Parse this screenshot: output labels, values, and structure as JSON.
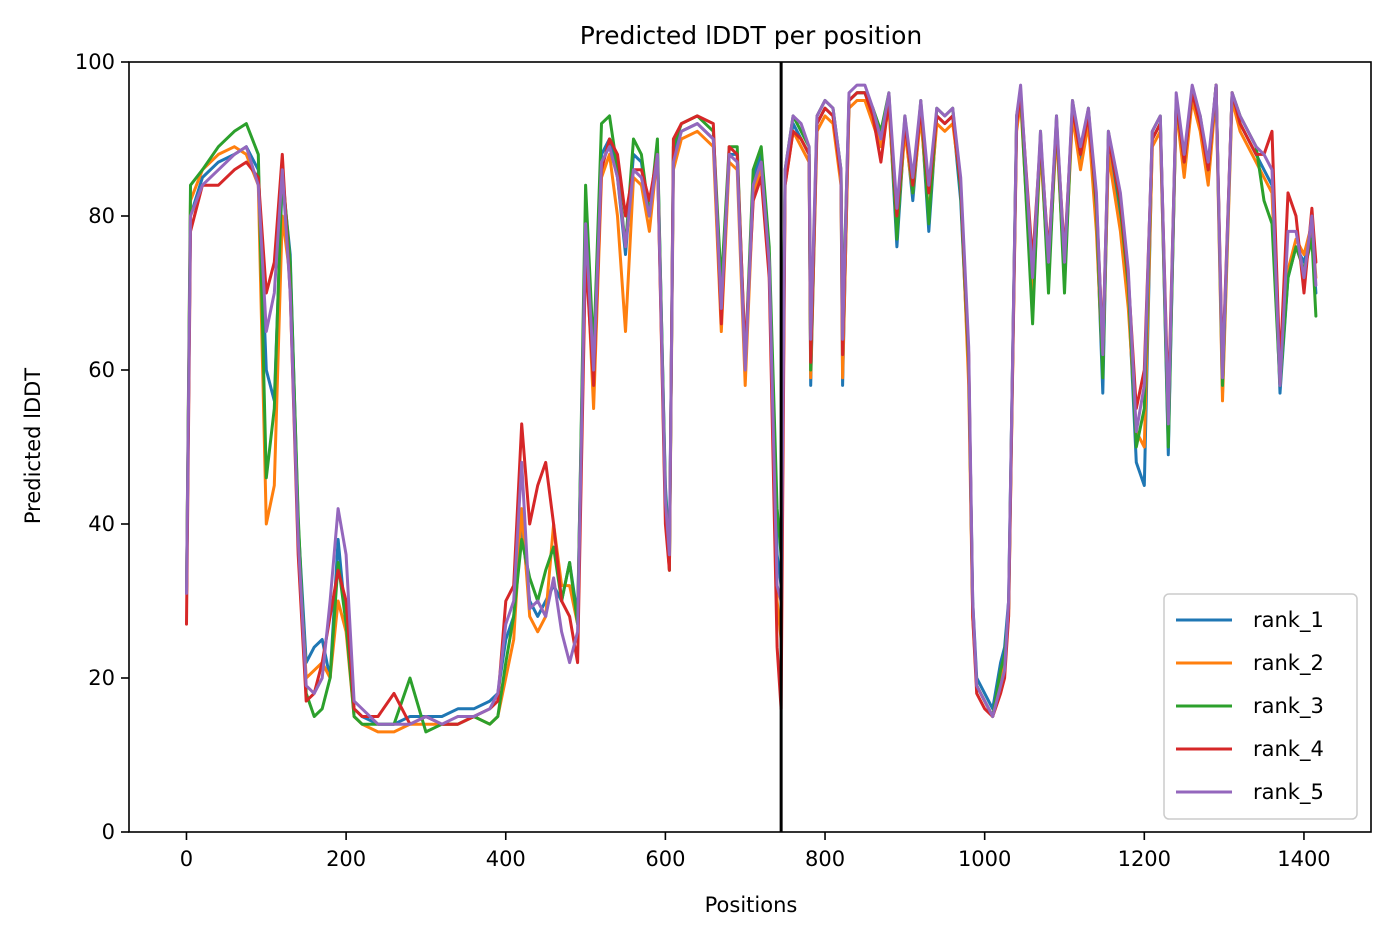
{
  "chart_data": {
    "type": "line",
    "title": "Predicted lDDT per position",
    "xlabel": "Positions",
    "ylabel": "Predicted lDDT",
    "xlim": [
      -72,
      1484
    ],
    "ylim": [
      0,
      100
    ],
    "xticks": [
      0,
      200,
      400,
      600,
      800,
      1000,
      1200,
      1400
    ],
    "yticks": [
      0,
      20,
      40,
      60,
      80,
      100
    ],
    "vline_x": 745,
    "legend_position": "lower-right",
    "grid": false,
    "x": [
      0,
      5,
      20,
      40,
      60,
      75,
      90,
      100,
      110,
      120,
      130,
      140,
      150,
      160,
      170,
      180,
      190,
      200,
      210,
      220,
      240,
      260,
      280,
      300,
      320,
      340,
      360,
      380,
      390,
      400,
      410,
      420,
      430,
      440,
      450,
      460,
      470,
      480,
      490,
      500,
      510,
      520,
      530,
      540,
      550,
      560,
      570,
      580,
      590,
      600,
      605,
      610,
      620,
      640,
      660,
      670,
      680,
      690,
      700,
      710,
      720,
      730,
      740,
      745,
      750,
      760,
      770,
      780,
      782,
      790,
      800,
      810,
      820,
      822,
      830,
      840,
      850,
      860,
      870,
      880,
      890,
      900,
      910,
      920,
      930,
      940,
      950,
      960,
      970,
      980,
      985,
      990,
      1000,
      1010,
      1020,
      1025,
      1030,
      1040,
      1045,
      1060,
      1070,
      1080,
      1090,
      1100,
      1110,
      1120,
      1130,
      1140,
      1148,
      1155,
      1170,
      1180,
      1190,
      1200,
      1210,
      1220,
      1230,
      1240,
      1250,
      1260,
      1270,
      1280,
      1290,
      1298,
      1310,
      1320,
      1340,
      1350,
      1360,
      1370,
      1380,
      1390,
      1400,
      1410,
      1415
    ],
    "series": [
      {
        "name": "rank_1",
        "color": "#1f77b4",
        "values": [
          31,
          80,
          85,
          87,
          88,
          89,
          86,
          60,
          56,
          85,
          75,
          40,
          22,
          24,
          25,
          20,
          38,
          27,
          16,
          15,
          14,
          14,
          15,
          15,
          15,
          16,
          16,
          17,
          18,
          25,
          28,
          40,
          30,
          28,
          30,
          32,
          30,
          35,
          28,
          80,
          60,
          88,
          90,
          85,
          75,
          88,
          87,
          80,
          89,
          45,
          36,
          88,
          91,
          92,
          90,
          70,
          88,
          88,
          60,
          85,
          88,
          75,
          36,
          32,
          85,
          92,
          90,
          88,
          58,
          92,
          94,
          93,
          85,
          58,
          95,
          96,
          96,
          93,
          90,
          95,
          76,
          92,
          82,
          94,
          78,
          93,
          92,
          93,
          82,
          60,
          30,
          20,
          18,
          16,
          22,
          24,
          30,
          92,
          96,
          70,
          90,
          73,
          92,
          73,
          94,
          87,
          93,
          80,
          57,
          90,
          80,
          70,
          48,
          45,
          90,
          92,
          49,
          95,
          86,
          96,
          92,
          85,
          97,
          57,
          96,
          92,
          88,
          86,
          84,
          57,
          72,
          76,
          74,
          78,
          70
        ]
      },
      {
        "name": "rank_2",
        "color": "#ff7f0e",
        "values": [
          31,
          82,
          86,
          88,
          89,
          88,
          84,
          40,
          45,
          80,
          72,
          38,
          20,
          21,
          22,
          20,
          30,
          26,
          15,
          14,
          13,
          13,
          14,
          14,
          14,
          14,
          15,
          14,
          15,
          20,
          25,
          42,
          28,
          26,
          28,
          40,
          32,
          32,
          27,
          78,
          55,
          85,
          88,
          80,
          65,
          85,
          84,
          78,
          88,
          42,
          34,
          86,
          90,
          91,
          89,
          65,
          87,
          86,
          58,
          83,
          86,
          73,
          30,
          25,
          84,
          91,
          89,
          87,
          59,
          91,
          93,
          92,
          84,
          59,
          94,
          95,
          95,
          92,
          89,
          94,
          78,
          91,
          83,
          93,
          80,
          92,
          91,
          92,
          84,
          58,
          28,
          19,
          17,
          15,
          20,
          22,
          28,
          91,
          95,
          68,
          89,
          72,
          91,
          72,
          93,
          86,
          92,
          78,
          60,
          88,
          78,
          68,
          52,
          50,
          89,
          91,
          52,
          94,
          85,
          95,
          91,
          84,
          96,
          56,
          95,
          91,
          87,
          85,
          83,
          58,
          73,
          77,
          75,
          79,
          72
        ]
      },
      {
        "name": "rank_3",
        "color": "#2ca02c",
        "values": [
          31,
          84,
          86,
          89,
          91,
          92,
          88,
          46,
          55,
          86,
          74,
          41,
          18,
          15,
          16,
          20,
          35,
          27,
          15,
          14,
          14,
          14,
          20,
          13,
          14,
          14,
          15,
          14,
          15,
          22,
          28,
          38,
          33,
          30,
          34,
          37,
          30,
          35,
          27,
          84,
          62,
          92,
          93,
          86,
          76,
          90,
          88,
          80,
          90,
          44,
          34,
          89,
          92,
          93,
          91,
          71,
          89,
          89,
          61,
          86,
          89,
          76,
          42,
          36,
          86,
          93,
          91,
          89,
          60,
          93,
          95,
          94,
          86,
          66,
          95,
          96,
          96,
          94,
          91,
          96,
          77,
          93,
          83,
          95,
          79,
          94,
          93,
          94,
          83,
          61,
          29,
          19,
          17,
          15,
          21,
          23,
          29,
          93,
          96,
          66,
          91,
          70,
          93,
          70,
          95,
          88,
          94,
          81,
          59,
          91,
          81,
          71,
          50,
          55,
          91,
          93,
          50,
          95,
          87,
          96,
          93,
          86,
          97,
          58,
          96,
          93,
          89,
          82,
          79,
          58,
          72,
          76,
          73,
          77,
          67
        ]
      },
      {
        "name": "rank_4",
        "color": "#d62728",
        "values": [
          27,
          78,
          84,
          84,
          86,
          87,
          85,
          70,
          74,
          88,
          70,
          36,
          17,
          18,
          22,
          28,
          34,
          30,
          16,
          15,
          15,
          18,
          14,
          15,
          14,
          14,
          15,
          16,
          17,
          30,
          32,
          53,
          40,
          45,
          48,
          40,
          30,
          28,
          22,
          75,
          58,
          86,
          90,
          88,
          80,
          86,
          86,
          82,
          88,
          40,
          34,
          90,
          92,
          93,
          92,
          66,
          89,
          88,
          62,
          82,
          85,
          72,
          24,
          16,
          84,
          91,
          90,
          88,
          61,
          92,
          94,
          93,
          85,
          62,
          95,
          96,
          96,
          93,
          87,
          95,
          80,
          92,
          84,
          94,
          83,
          93,
          92,
          93,
          84,
          62,
          28,
          18,
          16,
          15,
          18,
          20,
          28,
          92,
          96,
          74,
          90,
          75,
          92,
          75,
          94,
          88,
          93,
          82,
          63,
          90,
          82,
          72,
          55,
          60,
          90,
          92,
          55,
          95,
          87,
          96,
          92,
          86,
          97,
          60,
          96,
          92,
          88,
          88,
          91,
          60,
          83,
          80,
          70,
          81,
          74
        ]
      },
      {
        "name": "rank_5",
        "color": "#9467bd",
        "values": [
          31,
          80,
          84,
          86,
          88,
          89,
          84,
          65,
          70,
          86,
          70,
          38,
          19,
          18,
          20,
          30,
          42,
          36,
          17,
          16,
          14,
          14,
          14,
          15,
          14,
          15,
          15,
          16,
          18,
          27,
          30,
          48,
          29,
          30,
          28,
          33,
          26,
          22,
          26,
          79,
          60,
          87,
          89,
          85,
          76,
          86,
          85,
          80,
          88,
          43,
          36,
          87,
          91,
          92,
          90,
          68,
          88,
          87,
          60,
          84,
          87,
          74,
          32,
          30,
          86,
          93,
          92,
          89,
          64,
          93,
          95,
          94,
          86,
          64,
          96,
          97,
          97,
          94,
          90,
          96,
          81,
          93,
          85,
          95,
          84,
          94,
          93,
          94,
          85,
          63,
          30,
          19,
          17,
          15,
          19,
          21,
          30,
          93,
          97,
          72,
          91,
          74,
          93,
          74,
          95,
          89,
          94,
          83,
          62,
          91,
          83,
          73,
          52,
          58,
          91,
          93,
          53,
          96,
          88,
          97,
          93,
          87,
          97,
          59,
          96,
          93,
          89,
          88,
          86,
          58,
          78,
          78,
          72,
          80,
          71
        ]
      }
    ]
  }
}
